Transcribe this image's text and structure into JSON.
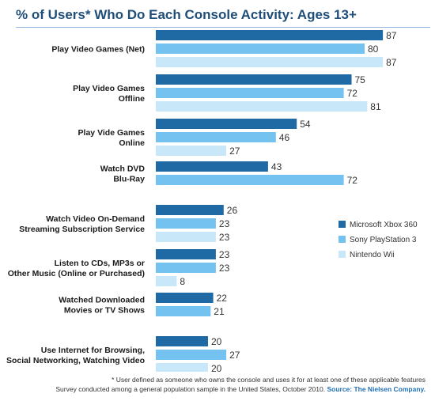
{
  "title": "% of Users* Who Do Each Console Activity: Ages 13+",
  "chart_data": {
    "type": "bar",
    "orientation": "horizontal",
    "title": "% of Users* Who Do Each Console Activity: Ages 13+",
    "categories": [
      [
        "Play Video Games (Net)"
      ],
      [
        "Play Video Games",
        "Offline"
      ],
      [
        "Play Vide Games",
        "Online"
      ],
      [
        "Watch DVD",
        "Blu-Ray"
      ],
      [
        "Watch Video On-Demand",
        "Streaming Subscription Service"
      ],
      [
        "Listen to CDs, MP3s or",
        "Other Music (Online or Purchased)"
      ],
      [
        "Watched Downloaded",
        "Movies or TV Shows"
      ],
      [
        "Use Internet for Browsing,",
        "Social Networking, Watching Video"
      ]
    ],
    "series": [
      {
        "name": "Microsoft Xbox 360",
        "color": "#1f6aa5",
        "values": [
          87,
          75,
          54,
          43,
          26,
          23,
          22,
          20
        ]
      },
      {
        "name": "Sony PlayStation 3",
        "color": "#73c2ef",
        "values": [
          80,
          72,
          46,
          72,
          23,
          23,
          21,
          27
        ]
      },
      {
        "name": "Nintendo Wii",
        "color": "#c8e8f9",
        "values": [
          87,
          81,
          27,
          null,
          23,
          8,
          null,
          20
        ]
      }
    ],
    "xlim": [
      0,
      100
    ],
    "grid": false,
    "legend": "right"
  },
  "footer": {
    "note": "* User defined as someone who owns the console and uses it for at least one of these applicable features",
    "survey": "Survey conducted among a general population sample in the United States, October 2010.",
    "source": "Source: The Nielsen Company."
  }
}
